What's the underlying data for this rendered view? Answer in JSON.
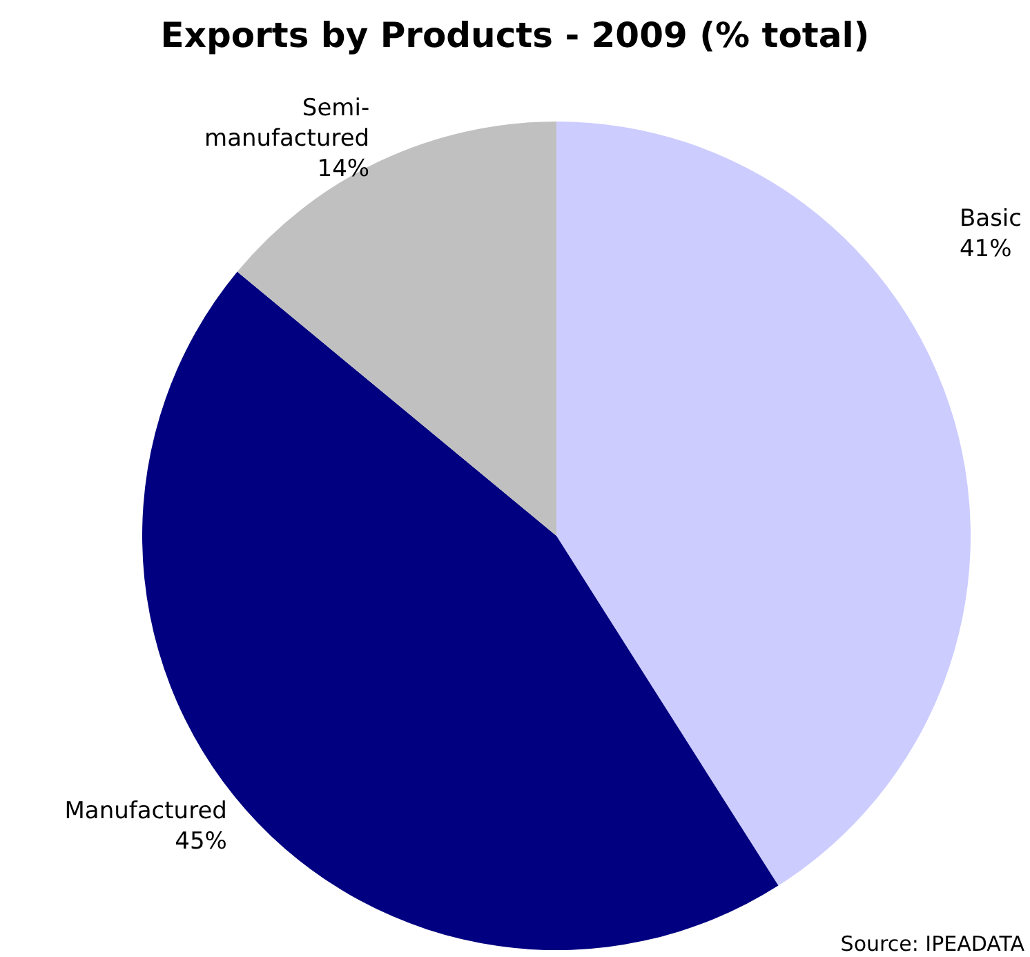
{
  "chart_data": {
    "type": "pie",
    "title": "Exports by Products - 2009 (% total)",
    "categories": [
      "Basic",
      "Manufactured",
      "Semi-manufactured"
    ],
    "values": [
      41,
      45,
      14
    ],
    "colors": [
      "#ccccff",
      "#000080",
      "#c0c0c0"
    ],
    "value_labels": [
      "41%",
      "45%",
      "14%"
    ],
    "legend": false,
    "annotations": [
      "Source: IPEADATA"
    ]
  }
}
